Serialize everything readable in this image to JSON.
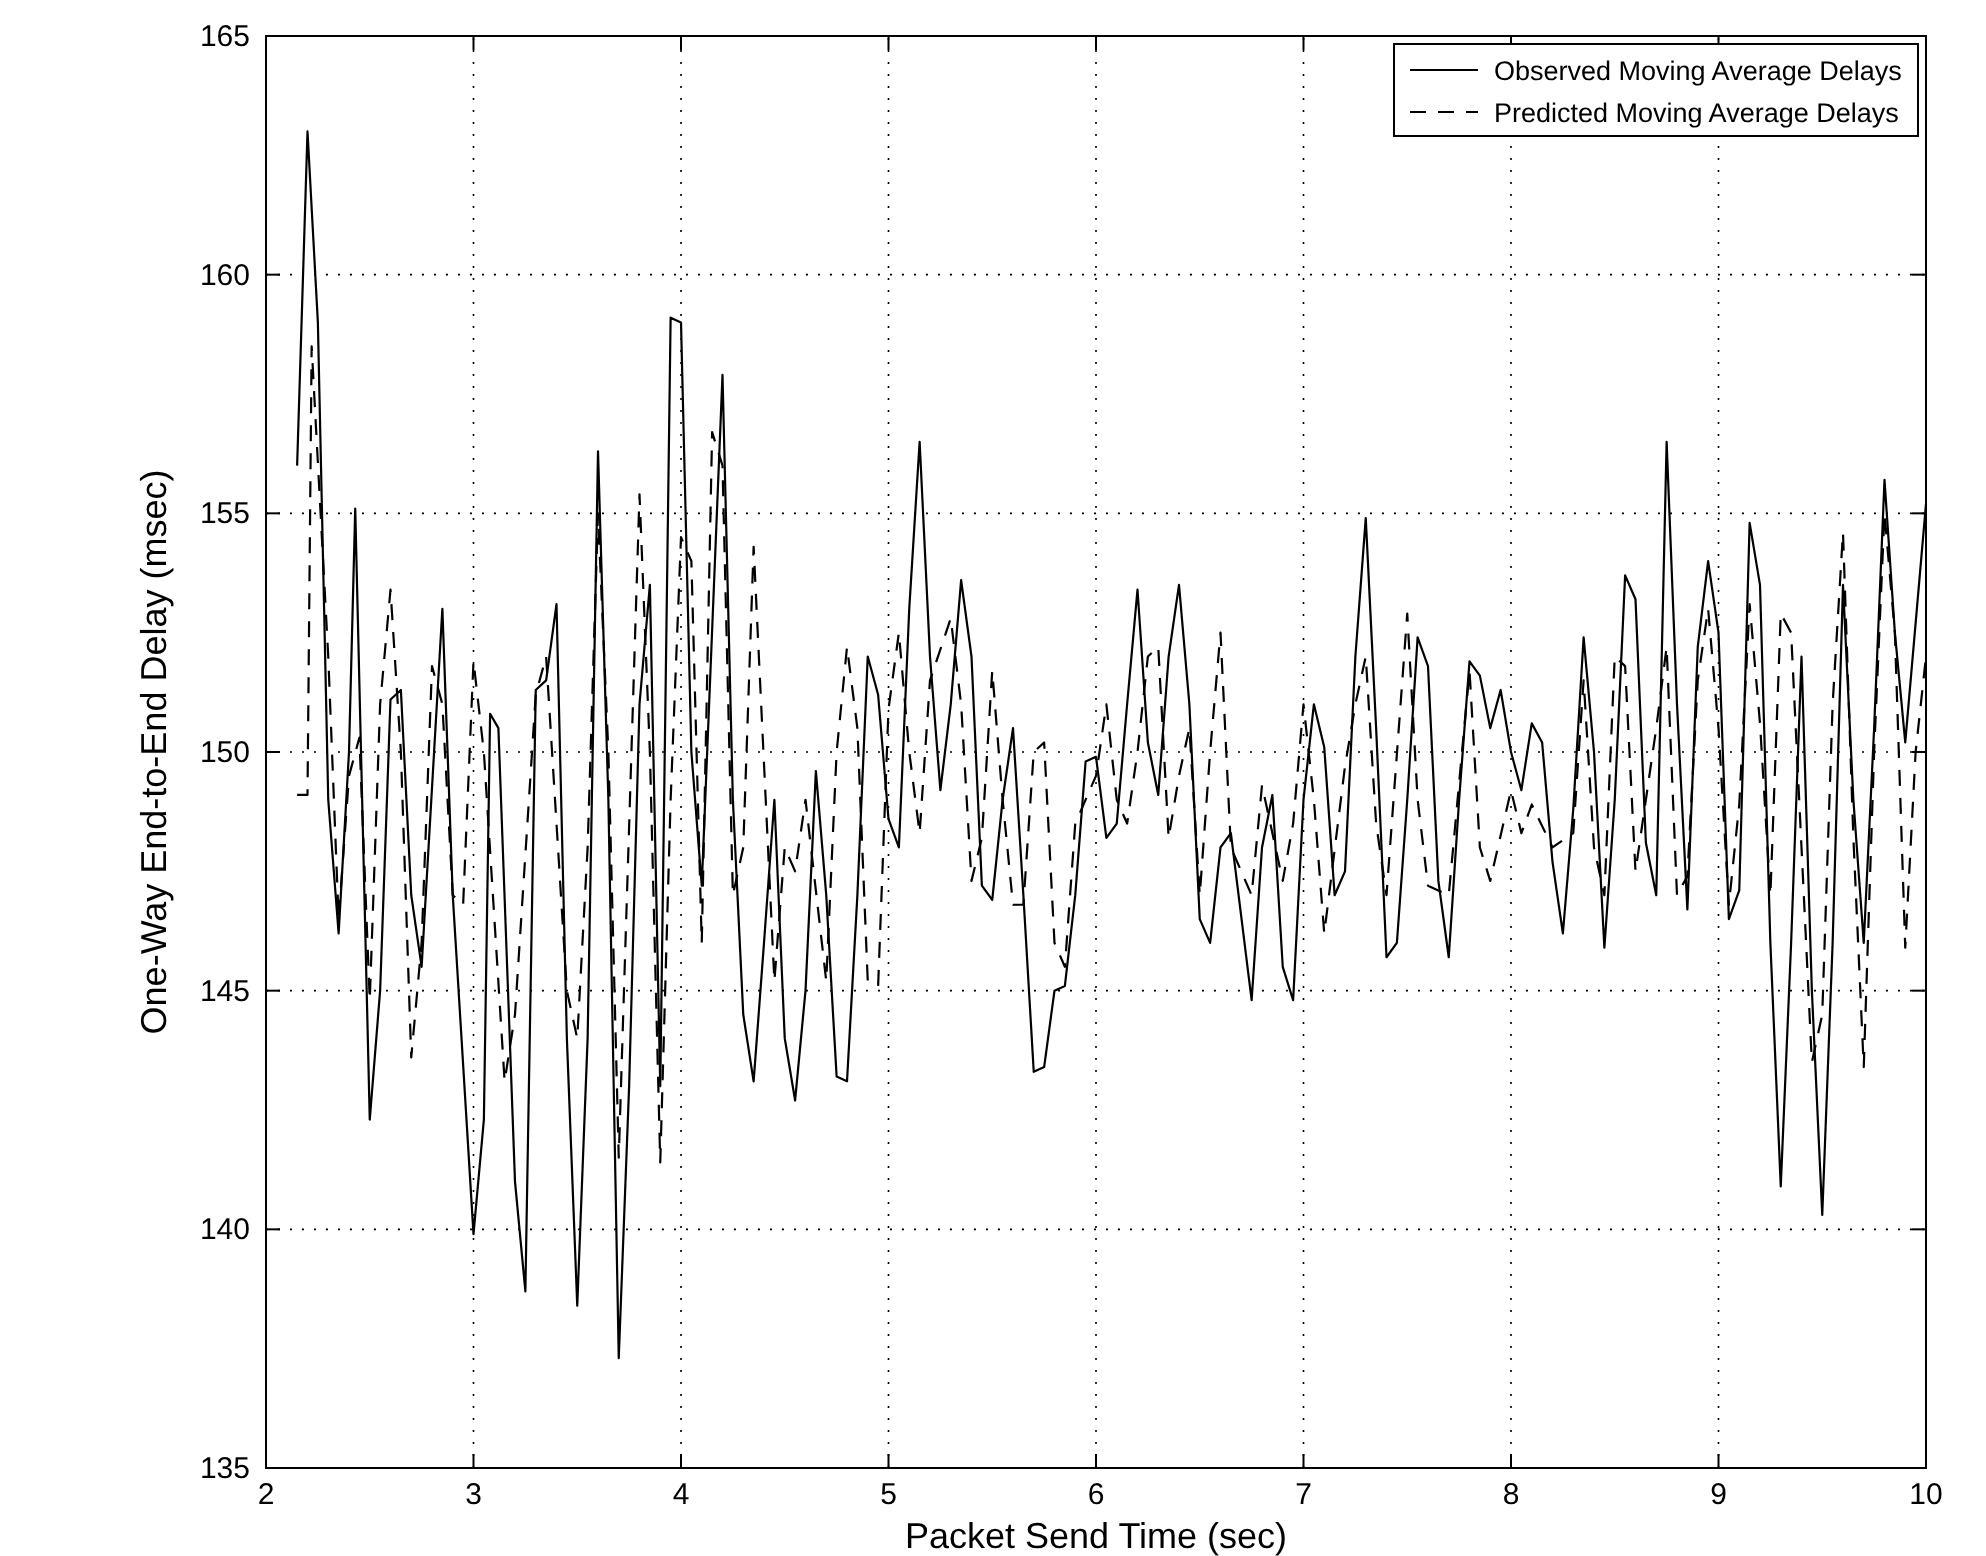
{
  "chart_data": {
    "type": "line",
    "xlabel": "Packet Send Time (sec)",
    "ylabel": "One-Way End-to-End Delay (msec)",
    "xlim": [
      2,
      10
    ],
    "xticks": [
      2,
      3,
      4,
      5,
      6,
      7,
      8,
      9,
      10
    ],
    "ylim": [
      135,
      165
    ],
    "yticks": [
      135,
      140,
      145,
      150,
      155,
      160,
      165
    ],
    "grid": true,
    "legend": "top right",
    "series": [
      {
        "name": "Observed Moving Average Delays",
        "color": "#000000",
        "line_style": "solid",
        "x": [
          2.15,
          2.2,
          2.25,
          2.3,
          2.35,
          2.4,
          2.43,
          2.5,
          2.55,
          2.6,
          2.65,
          2.7,
          2.75,
          2.85,
          2.9,
          3.0,
          3.05,
          3.08,
          3.12,
          3.2,
          3.25,
          3.3,
          3.35,
          3.4,
          3.45,
          3.5,
          3.55,
          3.6,
          3.65,
          3.7,
          3.75,
          3.8,
          3.85,
          3.9,
          3.95,
          4.0,
          4.05,
          4.1,
          4.2,
          4.25,
          4.3,
          4.35,
          4.4,
          4.45,
          4.5,
          4.55,
          4.6,
          4.65,
          4.7,
          4.75,
          4.8,
          4.85,
          4.9,
          4.95,
          5.0,
          5.05,
          5.1,
          5.15,
          5.2,
          5.25,
          5.3,
          5.35,
          5.4,
          5.45,
          5.5,
          5.55,
          5.6,
          5.65,
          5.7,
          5.75,
          5.8,
          5.85,
          5.9,
          5.95,
          6.0,
          6.05,
          6.1,
          6.15,
          6.2,
          6.25,
          6.3,
          6.35,
          6.4,
          6.45,
          6.5,
          6.55,
          6.6,
          6.65,
          6.75,
          6.8,
          6.85,
          6.9,
          6.95,
          7.0,
          7.05,
          7.1,
          7.15,
          7.2,
          7.25,
          7.3,
          7.35,
          7.4,
          7.45,
          7.5,
          7.55,
          7.6,
          7.65,
          7.7,
          7.75,
          7.8,
          7.85,
          7.9,
          7.95,
          8.0,
          8.05,
          8.1,
          8.15,
          8.2,
          8.25,
          8.3,
          8.35,
          8.4,
          8.45,
          8.5,
          8.55,
          8.6,
          8.65,
          8.7,
          8.75,
          8.8,
          8.85,
          8.9,
          8.95,
          9.0,
          9.05,
          9.1,
          9.15,
          9.2,
          9.25,
          9.3,
          9.35,
          9.4,
          9.45,
          9.5,
          9.55,
          9.6,
          9.65,
          9.7,
          9.75,
          9.8,
          9.85,
          9.9,
          10
        ],
        "values": [
          156,
          163,
          159,
          149,
          146.2,
          150,
          155.1,
          142.3,
          145,
          151.1,
          151.3,
          147,
          145.5,
          153,
          147,
          139.9,
          142.3,
          150.8,
          150.5,
          141,
          138.7,
          151.3,
          151.5,
          153.1,
          144,
          138.4,
          144,
          156.3,
          149,
          137.3,
          143,
          151,
          153.5,
          143,
          159.1,
          159,
          150,
          147.2,
          157.9,
          149,
          144.5,
          143.1,
          146,
          149,
          144,
          142.7,
          145,
          149.6,
          147,
          143.2,
          143.1,
          147,
          152,
          151.2,
          148.6,
          148,
          153,
          156.5,
          152,
          149.2,
          151,
          153.6,
          152,
          147.2,
          146.9,
          149,
          150.5,
          147,
          143.3,
          143.4,
          145,
          145.1,
          147,
          149.8,
          149.9,
          148.2,
          148.5,
          151,
          153.4,
          150.2,
          149.1,
          152,
          153.5,
          151,
          146.5,
          146,
          148,
          148.3,
          144.8,
          148,
          149.1,
          145.5,
          144.8,
          149,
          151,
          150.1,
          147,
          147.5,
          152,
          154.9,
          150.5,
          145.7,
          146,
          149,
          152.4,
          151.8,
          147.3,
          145.7,
          149,
          151.9,
          151.6,
          150.5,
          151.3,
          150,
          149.2,
          150.6,
          150.2,
          147.7,
          146.2,
          148.8,
          152.4,
          150,
          145.9,
          149,
          153.7,
          153.2,
          148.1,
          147,
          156.5,
          151,
          146.7,
          152.2,
          154,
          152.5,
          146.5,
          147.1,
          154.8,
          153.5,
          146,
          140.9,
          146,
          152,
          145,
          140.3,
          146,
          153.5,
          149,
          146,
          150.5,
          155.7,
          152.5,
          150.2,
          155.2
        ]
      },
      {
        "name": "Predicted Moving Average Delays",
        "color": "#000000",
        "line_style": "dashed",
        "x": [
          2.15,
          2.2,
          2.22,
          2.3,
          2.35,
          2.4,
          2.45,
          2.5,
          2.55,
          2.6,
          2.65,
          2.7,
          2.75,
          2.8,
          2.85,
          2.9,
          2.95,
          3.0,
          3.05,
          3.15,
          3.2,
          3.3,
          3.35,
          3.45,
          3.5,
          3.55,
          3.6,
          3.65,
          3.7,
          3.8,
          3.85,
          3.9,
          3.95,
          4.0,
          4.05,
          4.1,
          4.15,
          4.2,
          4.25,
          4.3,
          4.35,
          4.45,
          4.5,
          4.55,
          4.6,
          4.7,
          4.75,
          4.8,
          4.85,
          4.9,
          4.95,
          5.0,
          5.05,
          5.1,
          5.15,
          5.2,
          5.3,
          5.35,
          5.4,
          5.45,
          5.5,
          5.55,
          5.6,
          5.65,
          5.7,
          5.75,
          5.8,
          5.85,
          5.9,
          6.0,
          6.05,
          6.1,
          6.15,
          6.2,
          6.25,
          6.3,
          6.35,
          6.4,
          6.45,
          6.5,
          6.55,
          6.6,
          6.65,
          6.7,
          6.75,
          6.8,
          6.9,
          6.95,
          7.0,
          7.05,
          7.1,
          7.2,
          7.25,
          7.3,
          7.35,
          7.4,
          7.5,
          7.55,
          7.6,
          7.7,
          7.8,
          7.85,
          7.9,
          8.0,
          8.05,
          8.1,
          8.2,
          8.3,
          8.35,
          8.4,
          8.45,
          8.5,
          8.55,
          8.6,
          8.7,
          8.75,
          8.8,
          8.85,
          8.9,
          8.95,
          9.0,
          9.05,
          9.1,
          9.15,
          9.2,
          9.25,
          9.3,
          9.35,
          9.4,
          9.45,
          9.5,
          9.55,
          9.6,
          9.65,
          9.7,
          9.75,
          9.8,
          9.85,
          9.9,
          9.95,
          10
        ],
        "values": [
          149.1,
          149.1,
          158.5,
          152,
          146.5,
          149.5,
          150.3,
          144.8,
          151,
          153.4,
          150,
          143.6,
          146,
          151.8,
          151,
          147,
          146.8,
          151.9,
          150,
          143.1,
          144.5,
          151.2,
          152,
          145,
          144,
          148,
          155,
          150,
          141.5,
          155.4,
          150,
          141.4,
          149,
          154.5,
          154,
          146,
          156.7,
          156,
          147,
          148,
          154.3,
          145.2,
          148,
          147.5,
          149,
          145.2,
          150,
          152.2,
          150.5,
          145.2,
          145.1,
          150.9,
          152.5,
          150,
          148.3,
          151.5,
          152.8,
          151,
          147.3,
          148.2,
          151.7,
          149,
          146.8,
          146.8,
          150,
          150.2,
          146,
          145.5,
          148.5,
          149.5,
          151,
          149,
          148.5,
          150,
          152,
          152.2,
          148.2,
          149.5,
          150.5,
          147,
          150,
          152.5,
          148,
          147.5,
          147,
          149.3,
          147.3,
          148.5,
          151,
          149,
          146.2,
          149.7,
          151,
          152,
          148.5,
          147,
          152.9,
          149,
          147.2,
          147,
          151.7,
          148,
          147.3,
          149.2,
          148.3,
          148.9,
          148,
          148.3,
          151.5,
          148,
          147,
          152,
          151.8,
          147.5,
          150.5,
          152.2,
          147,
          147.4,
          151.5,
          153,
          150.5,
          146.8,
          148.9,
          153.1,
          150.6,
          147,
          152.9,
          152.5,
          148,
          143.5,
          144.5,
          151,
          154.6,
          148.2,
          143.4,
          150,
          155,
          152.5,
          145.9,
          150,
          152
        ]
      }
    ]
  }
}
